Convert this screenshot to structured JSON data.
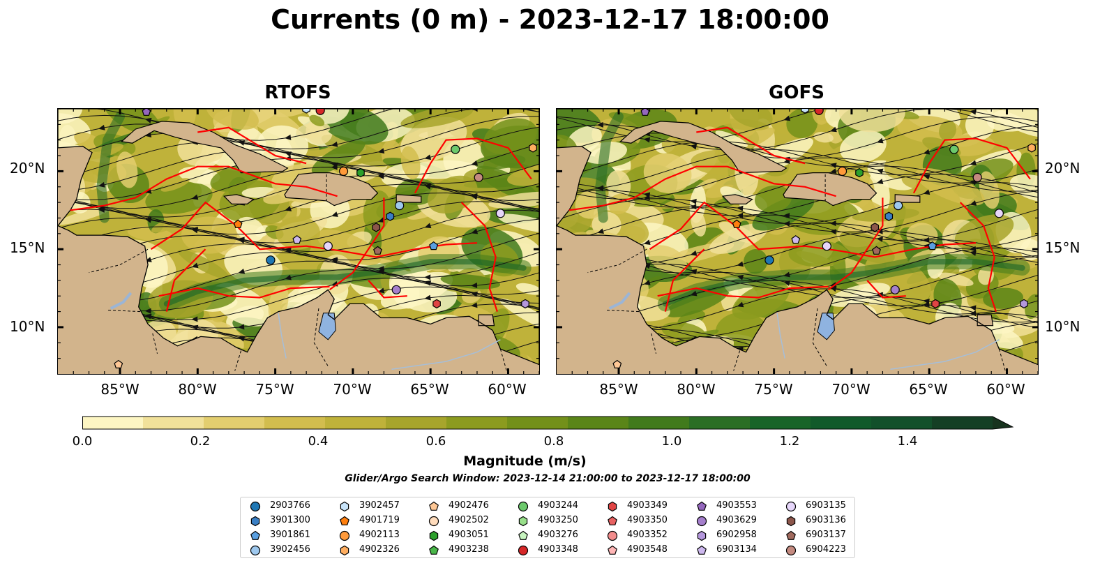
{
  "figure": {
    "title": "Currents (0 m) - 2023-12-17 18:00:00",
    "subtitle": "Glider/Argo Search Window: 2023-12-14 21:00:00 to 2023-12-17 18:00:00",
    "colorbar_label": "Magnitude (m/s)",
    "colorbar_ticks": [
      "0.0",
      "0.2",
      "0.4",
      "0.6",
      "0.8",
      "1.0",
      "1.2",
      "1.4"
    ],
    "colorbar_range": [
      0,
      1.5
    ],
    "colorbar_colors": [
      "#fdf6c3",
      "#f1e19a",
      "#e3ce6f",
      "#d2bd4e",
      "#bfb23a",
      "#a7a52c",
      "#8c9b1f",
      "#73901a",
      "#5a8518",
      "#417a1c",
      "#2b6e24",
      "#186428",
      "#115a2a",
      "#12502a",
      "#143f24",
      "#17331e"
    ]
  },
  "map": {
    "lon_ticks": [
      "85°W",
      "80°W",
      "75°W",
      "70°W",
      "65°W",
      "60°W"
    ],
    "lat_ticks": [
      "20°N",
      "15°N",
      "10°N"
    ],
    "extent": {
      "lon": [
        -89,
        -58
      ],
      "lat": [
        7,
        24
      ]
    },
    "land_color": "#d2b48c"
  },
  "panels": [
    {
      "name": "RTOFS"
    },
    {
      "name": "GOFS"
    }
  ],
  "legend": {
    "items": [
      {
        "label": "2903766",
        "marker": "circle",
        "color": "#1f77b4"
      },
      {
        "label": "3901300",
        "marker": "hexagon",
        "color": "#3a7fc4"
      },
      {
        "label": "3901861",
        "marker": "pentagon",
        "color": "#5a9fe0"
      },
      {
        "label": "3902456",
        "marker": "circle",
        "color": "#9ec8ee"
      },
      {
        "label": "3902457",
        "marker": "hexagon",
        "color": "#c8e4fa"
      },
      {
        "label": "4901719",
        "marker": "pentagon",
        "color": "#ff7f0e"
      },
      {
        "label": "4902113",
        "marker": "circle",
        "color": "#ff9a3a"
      },
      {
        "label": "4902326",
        "marker": "hexagon",
        "color": "#ffae60"
      },
      {
        "label": "4902476",
        "marker": "pentagon",
        "color": "#ffc896"
      },
      {
        "label": "4902502",
        "marker": "circle",
        "color": "#ffdcbc"
      },
      {
        "label": "4903051",
        "marker": "hexagon",
        "color": "#2ca02c"
      },
      {
        "label": "4903238",
        "marker": "pentagon",
        "color": "#49b649"
      },
      {
        "label": "4903244",
        "marker": "circle",
        "color": "#6cc96c"
      },
      {
        "label": "4903250",
        "marker": "hexagon",
        "color": "#98df8a"
      },
      {
        "label": "4903276",
        "marker": "pentagon",
        "color": "#c8f5c0"
      },
      {
        "label": "4903348",
        "marker": "circle",
        "color": "#d62728"
      },
      {
        "label": "4903349",
        "marker": "hexagon",
        "color": "#e04444"
      },
      {
        "label": "4903350",
        "marker": "pentagon",
        "color": "#e86262"
      },
      {
        "label": "4903352",
        "marker": "circle",
        "color": "#f28c8c"
      },
      {
        "label": "4903548",
        "marker": "pentagon",
        "color": "#ffb6b6"
      },
      {
        "label": "4903553",
        "marker": "pentagon",
        "color": "#9467bd"
      },
      {
        "label": "4903629",
        "marker": "circle",
        "color": "#a57fcc"
      },
      {
        "label": "6902958",
        "marker": "hexagon",
        "color": "#b497dc"
      },
      {
        "label": "6903134",
        "marker": "pentagon",
        "color": "#cdb8ee"
      },
      {
        "label": "6903135",
        "marker": "circle",
        "color": "#e6d6fa"
      },
      {
        "label": "6903136",
        "marker": "hexagon",
        "color": "#8c564b"
      },
      {
        "label": "6903137",
        "marker": "pentagon",
        "color": "#a06a5e"
      },
      {
        "label": "6904223",
        "marker": "circle",
        "color": "#c48a80"
      }
    ]
  },
  "floats": [
    {
      "id": "2903766",
      "lon": -75.3,
      "lat": 14.3
    },
    {
      "id": "3901300",
      "lon": -67.6,
      "lat": 17.1
    },
    {
      "id": "3901861",
      "lon": -64.8,
      "lat": 15.2
    },
    {
      "id": "3902456",
      "lon": -67.0,
      "lat": 17.8
    },
    {
      "id": "3902457",
      "lon": -73.0,
      "lat": 24.0
    },
    {
      "id": "4901719",
      "lon": -77.4,
      "lat": 16.6
    },
    {
      "id": "4902113",
      "lon": -70.6,
      "lat": 20.0
    },
    {
      "id": "4902326",
      "lon": -58.4,
      "lat": 21.5
    },
    {
      "id": "4902476",
      "lon": -85.1,
      "lat": 7.6
    },
    {
      "id": "4903051",
      "lon": -69.5,
      "lat": 19.9
    },
    {
      "id": "4903244",
      "lon": -63.4,
      "lat": 21.4
    },
    {
      "id": "4903348",
      "lon": -72.1,
      "lat": 23.9
    },
    {
      "id": "4903349",
      "lon": -64.6,
      "lat": 11.5
    },
    {
      "id": "4903553",
      "lon": -83.3,
      "lat": 23.8
    },
    {
      "id": "4903629",
      "lon": -67.2,
      "lat": 12.4
    },
    {
      "id": "6902958",
      "lon": -58.9,
      "lat": 11.5
    },
    {
      "id": "6903134",
      "lon": -73.6,
      "lat": 15.6
    },
    {
      "id": "6903135",
      "lon": -71.6,
      "lat": 15.2
    },
    {
      "id": "6903136",
      "lon": -68.5,
      "lat": 16.4
    },
    {
      "id": "6903137",
      "lon": -68.4,
      "lat": 14.9
    },
    {
      "id": "6904223",
      "lon": -61.9,
      "lat": 19.6
    },
    {
      "id": "6903135",
      "lon": -60.5,
      "lat": 17.3
    }
  ]
}
